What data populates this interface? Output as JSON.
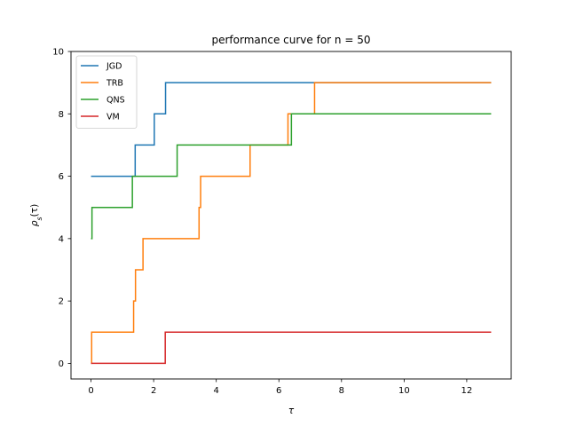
{
  "chart_data": {
    "type": "line",
    "title": "performance curve for n = 50",
    "xlabel": "τ",
    "ylabel": "ρ",
    "ylabel_sub": "s",
    "ylabel_arg": "(τ)",
    "xlim": [
      -0.64,
      13.42
    ],
    "ylim": [
      -0.5,
      10
    ],
    "xticks": [
      0,
      2,
      4,
      6,
      8,
      10,
      12
    ],
    "yticks": [
      0,
      2,
      4,
      6,
      8,
      10
    ],
    "grid": false,
    "legend_position": "upper-left",
    "step": "post",
    "series": [
      {
        "name": "JGD",
        "color": "#1f77b4",
        "x": [
          0,
          1.41,
          2.02,
          2.38,
          12.78
        ],
        "y": [
          6,
          7,
          8,
          9,
          9
        ]
      },
      {
        "name": "TRB",
        "color": "#ff7f0e",
        "x": [
          0,
          0.02,
          1.36,
          1.42,
          1.66,
          3.45,
          3.5,
          5.08,
          6.29,
          7.14,
          12.78
        ],
        "y": [
          0,
          1,
          2,
          3,
          4,
          5,
          6,
          7,
          8,
          9,
          9
        ]
      },
      {
        "name": "QNS",
        "color": "#2ca02c",
        "x": [
          0,
          0.03,
          1.32,
          2.75,
          6.4,
          12.78
        ],
        "y": [
          4,
          5,
          6,
          7,
          8,
          8
        ]
      },
      {
        "name": "VM",
        "color": "#d62728",
        "x": [
          0,
          2.37,
          12.78
        ],
        "y": [
          0,
          1,
          1
        ]
      }
    ]
  }
}
